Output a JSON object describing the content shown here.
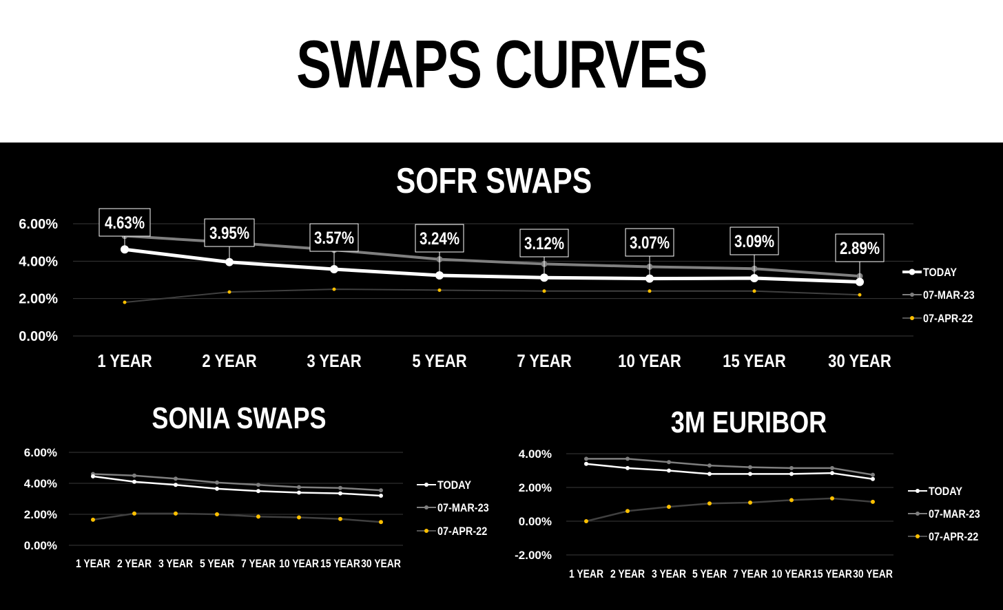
{
  "page": {
    "title": "SWAPS CURVES"
  },
  "legend_colors": {
    "TODAY": "#ffffff",
    "07-MAR-23": "#7f7f7f",
    "07-APR-22": "#ffc000",
    "grid": "#3a3a3a"
  },
  "chart_data": [
    {
      "id": "sofr",
      "type": "line",
      "title": "SOFR SWAPS",
      "categories": [
        "1 YEAR",
        "2 YEAR",
        "3 YEAR",
        "5 YEAR",
        "7 YEAR",
        "10 YEAR",
        "15 YEAR",
        "30 YEAR"
      ],
      "ylim": [
        0,
        6
      ],
      "yticks": [
        "6.00%",
        "4.00%",
        "2.00%",
        "0.00%"
      ],
      "ytick_values": [
        6,
        4,
        2,
        0
      ],
      "legend": "right",
      "series": [
        {
          "name": "TODAY",
          "values": [
            4.63,
            3.95,
            3.57,
            3.24,
            3.12,
            3.07,
            3.09,
            2.89
          ],
          "labels": [
            "4.63%",
            "3.95%",
            "3.57%",
            "3.24%",
            "3.12%",
            "3.07%",
            "3.09%",
            "2.89%"
          ]
        },
        {
          "name": "07-MAR-23",
          "values": [
            5.35,
            5.0,
            4.6,
            4.1,
            3.85,
            3.7,
            3.6,
            3.2
          ]
        },
        {
          "name": "07-APR-22",
          "values": [
            1.8,
            2.35,
            2.5,
            2.45,
            2.4,
            2.4,
            2.4,
            2.2
          ]
        }
      ]
    },
    {
      "id": "sonia",
      "type": "line",
      "title": "SONIA SWAPS",
      "categories": [
        "1 YEAR",
        "2 YEAR",
        "3 YEAR",
        "5 YEAR",
        "7 YEAR",
        "10 YEAR",
        "15 YEAR",
        "30 YEAR"
      ],
      "ylim": [
        0,
        6
      ],
      "yticks": [
        "6.00%",
        "4.00%",
        "2.00%",
        "0.00%"
      ],
      "ytick_values": [
        6,
        4,
        2,
        0
      ],
      "legend": "right",
      "series": [
        {
          "name": "TODAY",
          "values": [
            4.45,
            4.1,
            3.9,
            3.65,
            3.5,
            3.4,
            3.35,
            3.2
          ]
        },
        {
          "name": "07-MAR-23",
          "values": [
            4.6,
            4.5,
            4.3,
            4.05,
            3.9,
            3.75,
            3.7,
            3.55
          ]
        },
        {
          "name": "07-APR-22",
          "values": [
            1.65,
            2.05,
            2.05,
            2.0,
            1.85,
            1.8,
            1.7,
            1.5
          ]
        }
      ]
    },
    {
      "id": "euribor",
      "type": "line",
      "title": "3M EURIBOR",
      "categories": [
        "1 YEAR",
        "2 YEAR",
        "3 YEAR",
        "5 YEAR",
        "7 YEAR",
        "10 YEAR",
        "15 YEAR",
        "30 YEAR"
      ],
      "ylim": [
        -2,
        4
      ],
      "yticks": [
        "4.00%",
        "2.00%",
        "0.00%",
        "-2.00%"
      ],
      "ytick_values": [
        4,
        2,
        0,
        -2
      ],
      "legend": "right",
      "series": [
        {
          "name": "TODAY",
          "values": [
            3.4,
            3.15,
            3.0,
            2.8,
            2.8,
            2.8,
            2.85,
            2.5
          ]
        },
        {
          "name": "07-MAR-23",
          "values": [
            3.7,
            3.7,
            3.5,
            3.3,
            3.2,
            3.15,
            3.15,
            2.75
          ]
        },
        {
          "name": "07-APR-22",
          "values": [
            0.0,
            0.6,
            0.85,
            1.05,
            1.1,
            1.25,
            1.35,
            1.15
          ]
        }
      ]
    }
  ]
}
